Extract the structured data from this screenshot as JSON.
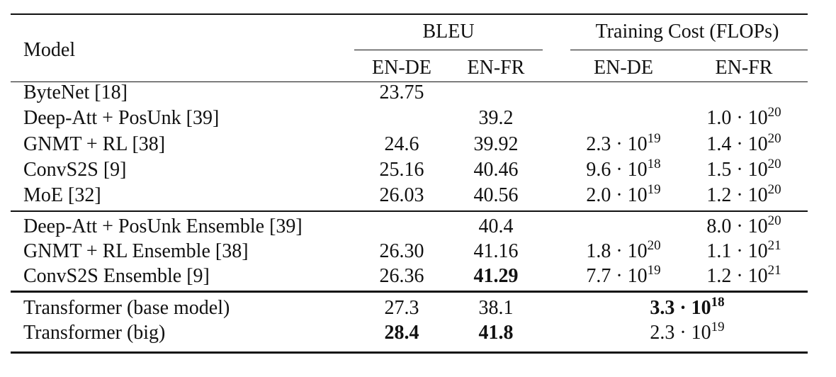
{
  "header": {
    "model": "Model",
    "bleu": "BLEU",
    "cost": "Training Cost (FLOPs)",
    "subcolumns": [
      "EN-DE",
      "EN-FR",
      "EN-DE",
      "EN-FR"
    ]
  },
  "groups": [
    {
      "rows": [
        {
          "model": "ByteNet [18]",
          "bleu_de": "23.75"
        },
        {
          "model": "Deep-Att + PosUnk [39]",
          "bleu_fr": "39.2",
          "cost_fr": {
            "base": "1.0 · 10",
            "exp": "20"
          }
        },
        {
          "model": "GNMT + RL [38]",
          "bleu_de": "24.6",
          "bleu_fr": "39.92",
          "cost_de": {
            "base": "2.3 · 10",
            "exp": "19"
          },
          "cost_fr": {
            "base": "1.4 · 10",
            "exp": "20"
          }
        },
        {
          "model": "ConvS2S [9]",
          "bleu_de": "25.16",
          "bleu_fr": "40.46",
          "cost_de": {
            "base": "9.6 · 10",
            "exp": "18"
          },
          "cost_fr": {
            "base": "1.5 · 10",
            "exp": "20"
          }
        },
        {
          "model": "MoE [32]",
          "bleu_de": "26.03",
          "bleu_fr": "40.56",
          "cost_de": {
            "base": "2.0 · 10",
            "exp": "19"
          },
          "cost_fr": {
            "base": "1.2 · 10",
            "exp": "20"
          }
        }
      ]
    },
    {
      "rows": [
        {
          "model": "Deep-Att + PosUnk Ensemble [39]",
          "bleu_fr": "40.4",
          "cost_fr": {
            "base": "8.0 · 10",
            "exp": "20"
          }
        },
        {
          "model": "GNMT + RL Ensemble [38]",
          "bleu_de": "26.30",
          "bleu_fr": "41.16",
          "cost_de": {
            "base": "1.8 · 10",
            "exp": "20"
          },
          "cost_fr": {
            "base": "1.1 · 10",
            "exp": "21"
          }
        },
        {
          "model": "ConvS2S Ensemble [9]",
          "bleu_de": "26.36",
          "bleu_fr": "41.29",
          "cost_de": {
            "base": "7.7 · 10",
            "exp": "19"
          },
          "cost_fr": {
            "base": "1.2 · 10",
            "exp": "21"
          },
          "bold": [
            "bleu_fr"
          ]
        }
      ]
    },
    {
      "rows": [
        {
          "model": "Transformer (base model)",
          "bleu_de": "27.3",
          "bleu_fr": "38.1",
          "cost": {
            "base": "3.3 · 10",
            "exp": "18"
          },
          "bold": [
            "cost"
          ]
        },
        {
          "model": "Transformer (big)",
          "bleu_de": "28.4",
          "bleu_fr": "41.8",
          "cost": {
            "base": "2.3 · 10",
            "exp": "19"
          },
          "bold": [
            "bleu_de",
            "bleu_fr"
          ]
        }
      ]
    }
  ]
}
